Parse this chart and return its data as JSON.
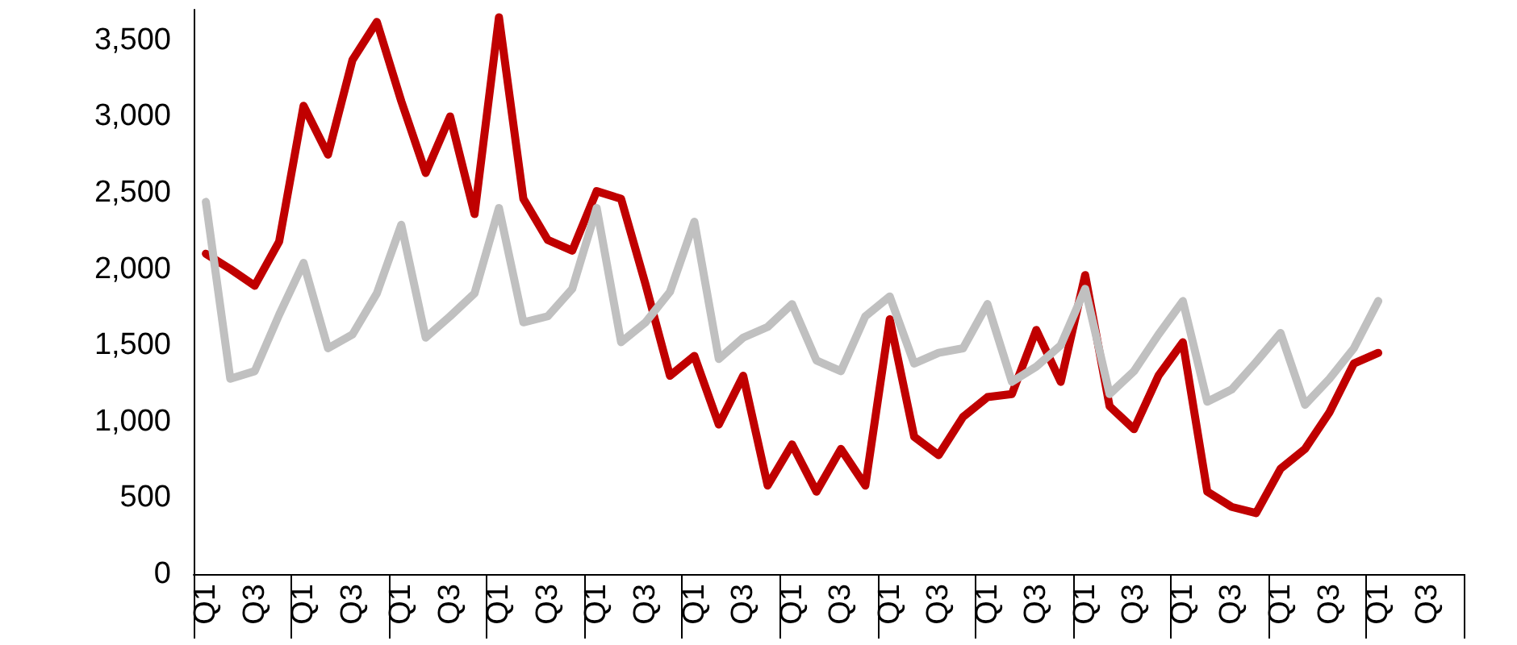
{
  "chart_data": {
    "type": "line",
    "categories": [
      "Q1",
      null,
      "Q3",
      null,
      "Q1",
      null,
      "Q3",
      null,
      "Q1",
      null,
      "Q3",
      null,
      "Q1",
      null,
      "Q3",
      null,
      "Q1",
      null,
      "Q3",
      null,
      "Q1",
      null,
      "Q3",
      null,
      "Q1",
      null,
      "Q3",
      null,
      "Q1",
      null,
      "Q3",
      null,
      "Q1",
      null,
      "Q3",
      null,
      "Q1",
      null,
      "Q3",
      null,
      "Q1",
      null,
      "Q3",
      null,
      "Q1",
      null,
      "Q3",
      null,
      "Q1",
      null,
      "Q3",
      null
    ],
    "series": [
      {
        "color": "#c00000",
        "values": [
          2100,
          2000,
          1890,
          2180,
          3070,
          2750,
          3370,
          3620,
          3100,
          2630,
          3000,
          2360,
          3650,
          2460,
          2190,
          2120,
          2510,
          2460,
          1900,
          1300,
          1430,
          980,
          1300,
          580,
          850,
          540,
          820,
          580,
          1670,
          900,
          780,
          1030,
          1160,
          1180,
          1600,
          1260,
          1960,
          1100,
          950,
          1300,
          1520,
          540,
          440,
          400,
          690,
          820,
          1060,
          1380,
          1450,
          null,
          null,
          null
        ]
      },
      {
        "color": "#c0c0c0",
        "values": [
          2440,
          1280,
          1330,
          1700,
          2040,
          1480,
          1570,
          1840,
          2290,
          1550,
          1690,
          1840,
          2400,
          1650,
          1690,
          1870,
          2400,
          1520,
          1650,
          1850,
          2310,
          1410,
          1550,
          1620,
          1770,
          1400,
          1330,
          1690,
          1820,
          1380,
          1450,
          1480,
          1770,
          1260,
          1360,
          1500,
          1870,
          1180,
          1330,
          1570,
          1790,
          1130,
          1210,
          1390,
          1580,
          1110,
          1280,
          1480,
          1790,
          null,
          null,
          null
        ]
      }
    ],
    "ylim": [
      0,
      3700
    ],
    "yticks": [
      0,
      500,
      {
        "value": 1000,
        "label": "1,000"
      },
      {
        "value": 1500,
        "label": "1,500"
      },
      {
        "value": 2000,
        "label": "2,000"
      },
      {
        "value": 2500,
        "label": "2,500"
      },
      {
        "value": 3000,
        "label": "3,000"
      },
      {
        "value": 3500,
        "label": "3,500"
      }
    ],
    "grid": false,
    "marker": "none",
    "line_style": "solid"
  }
}
